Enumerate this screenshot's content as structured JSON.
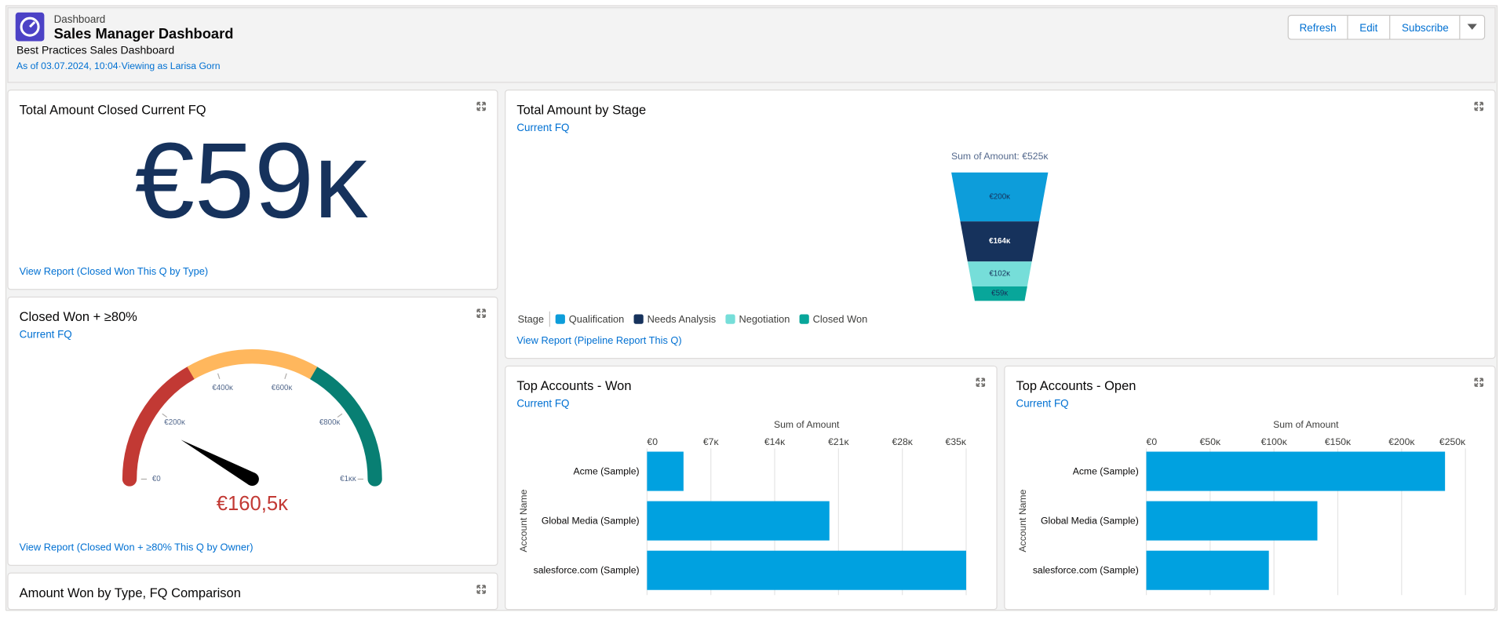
{
  "header": {
    "label": "Dashboard",
    "title": "Sales Manager Dashboard",
    "subtitle": "Best Practices Sales Dashboard",
    "status": "As of 03.07.2024, 10:04·Viewing as Larisa Gorn",
    "buttons": [
      "Refresh",
      "Edit",
      "Subscribe"
    ]
  },
  "widgets": [
    {
      "title": "Total Amount Closed Current FQ",
      "metric": "€59ᴋ",
      "link": "View Report (Closed Won This Q by Type)"
    },
    {
      "title": "Closed Won + ≥80%",
      "subtitle": "Current FQ",
      "link": "View Report (Closed Won + ≥80% This Q by Owner)"
    },
    {
      "title": "Amount Won by Type, FQ Comparison"
    },
    {
      "title": "Total Amount by Stage",
      "subtitle": "Current FQ",
      "link": "View Report (Pipeline Report This Q)"
    },
    {
      "title": "Top Accounts - Won",
      "subtitle": "Current FQ"
    },
    {
      "title": "Top Accounts - Open",
      "subtitle": "Current FQ"
    }
  ],
  "chart_data": [
    {
      "type": "funnel",
      "title": "Sum of Amount: €525ᴋ",
      "legend_title": "Stage",
      "categories": [
        "Qualification",
        "Needs Analysis",
        "Negotiation",
        "Closed Won"
      ],
      "values": [
        200,
        164,
        102,
        59
      ],
      "value_labels": [
        "€200ᴋ",
        "€164ᴋ",
        "€102ᴋ",
        "€59ᴋ"
      ],
      "colors": [
        "#0d9dda",
        "#16325c",
        "#76ded9",
        "#08a69a"
      ]
    },
    {
      "type": "gauge",
      "ylim": [
        0,
        1000
      ],
      "yticks": [
        {
          "value": 0,
          "label": "€0"
        },
        {
          "value": 200,
          "label": "€200ᴋ"
        },
        {
          "value": 400,
          "label": "€400ᴋ"
        },
        {
          "value": 600,
          "label": "€600ᴋ"
        },
        {
          "value": 800,
          "label": "€800ᴋ"
        },
        {
          "value": 1000,
          "label": "€1ᴋᴋ"
        }
      ],
      "values": [
        160.5
      ],
      "value_labels": [
        "€160,5ᴋ"
      ],
      "bands": [
        {
          "from": 0,
          "to": 333,
          "color": "#c23934"
        },
        {
          "from": 333,
          "to": 667,
          "color": "#ffb75d"
        },
        {
          "from": 667,
          "to": 1000,
          "color": "#087f73"
        }
      ]
    },
    {
      "type": "hbar",
      "xlabel": "Sum of Amount",
      "ylabel": "Account Name",
      "categories": [
        "Acme (Sample)",
        "Global Media (Sample)",
        "salesforce.com (Sample)"
      ],
      "values": [
        4,
        20,
        35
      ],
      "color": "#00a1e0",
      "xlim": [
        0,
        35
      ],
      "xticks": [
        {
          "value": 0,
          "label": "€0"
        },
        {
          "value": 7,
          "label": "€7ᴋ"
        },
        {
          "value": 14,
          "label": "€14ᴋ"
        },
        {
          "value": 21,
          "label": "€21ᴋ"
        },
        {
          "value": 28,
          "label": "€28ᴋ"
        },
        {
          "value": 35,
          "label": "€35ᴋ"
        }
      ],
      "grid": true
    },
    {
      "type": "hbar",
      "xlabel": "Sum of Amount",
      "ylabel": "Account Name",
      "categories": [
        "Acme (Sample)",
        "Global Media (Sample)",
        "salesforce.com (Sample)"
      ],
      "values": [
        234,
        134,
        96
      ],
      "color": "#00a1e0",
      "xlim": [
        0,
        250
      ],
      "xticks": [
        {
          "value": 0,
          "label": "€0"
        },
        {
          "value": 50,
          "label": "€50ᴋ"
        },
        {
          "value": 100,
          "label": "€100ᴋ"
        },
        {
          "value": 150,
          "label": "€150ᴋ"
        },
        {
          "value": 200,
          "label": "€200ᴋ"
        },
        {
          "value": 250,
          "label": "€250ᴋ"
        }
      ],
      "grid": true
    }
  ]
}
